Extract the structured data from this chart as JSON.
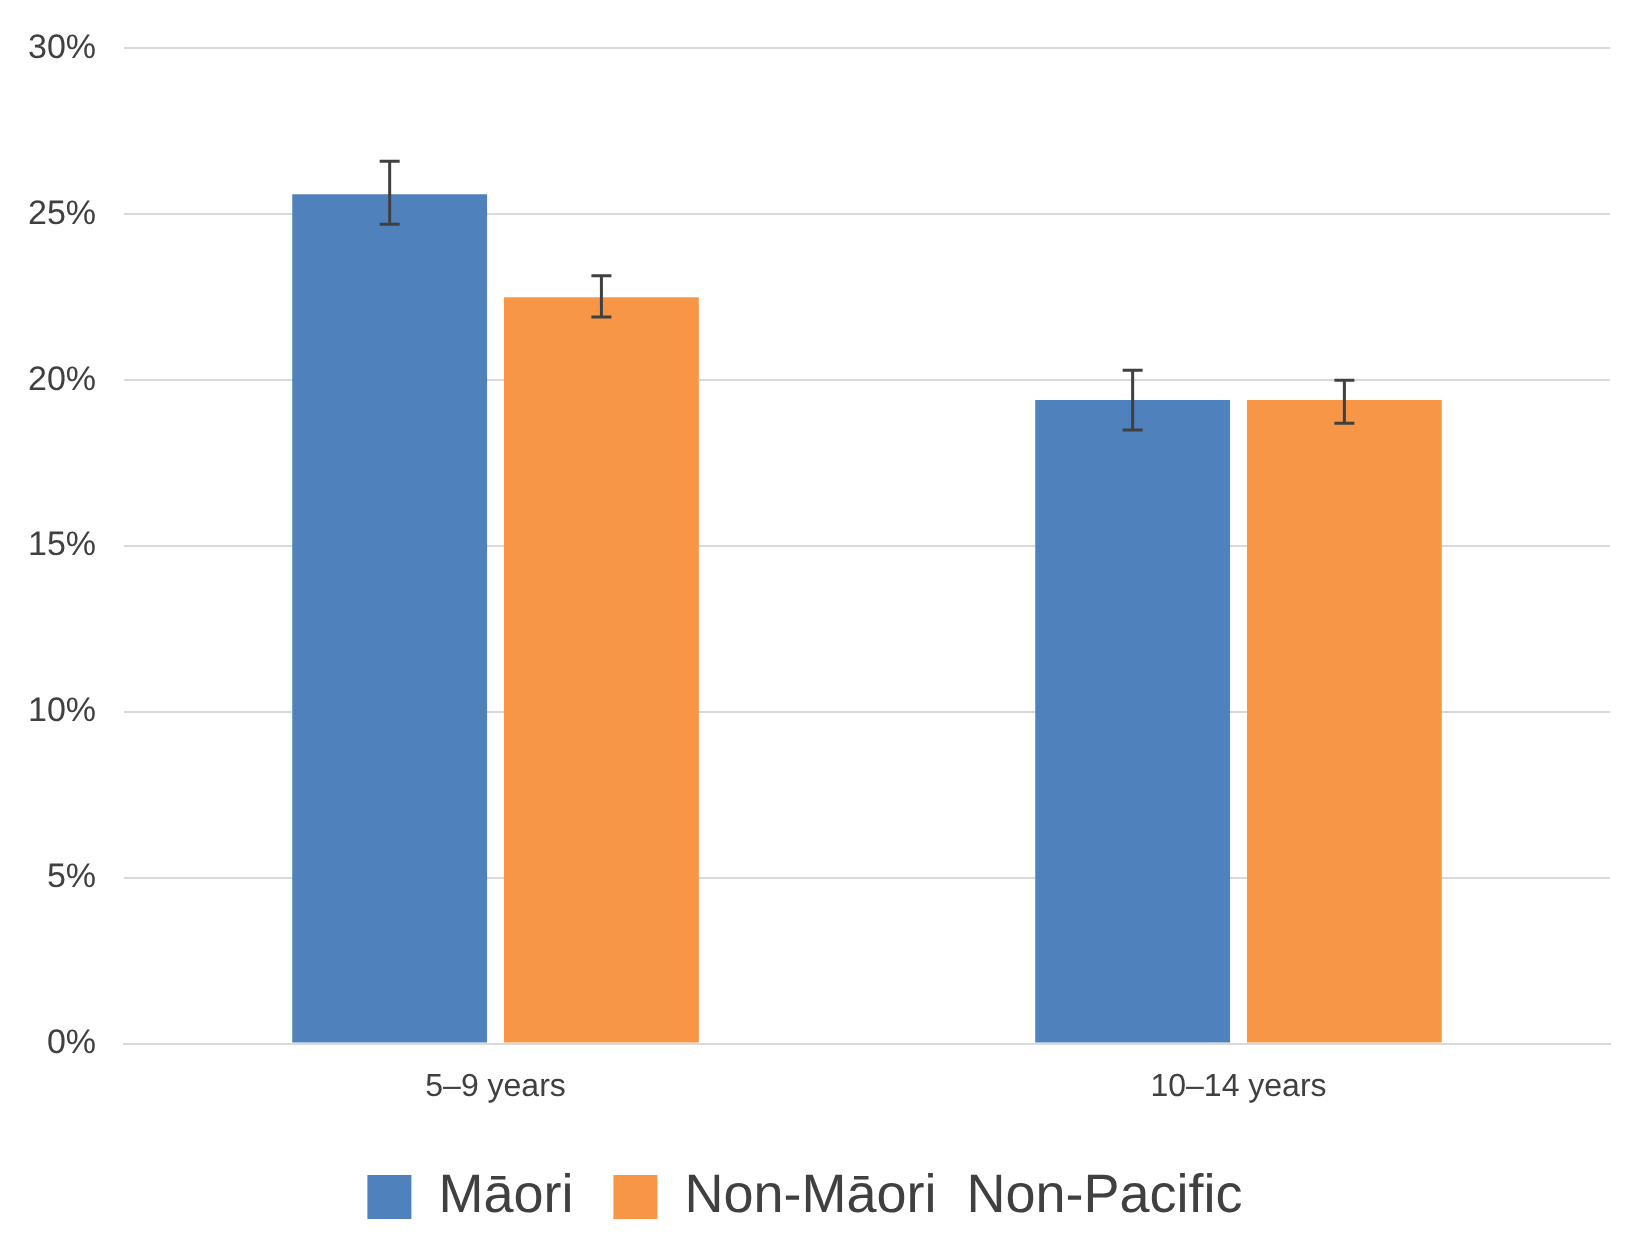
{
  "chart_data": {
    "type": "bar",
    "categories": [
      "5–9 years",
      "10–14 years"
    ],
    "series": [
      {
        "name": "Māori",
        "color": "#4f81bd",
        "values": [
          25.6,
          19.4
        ],
        "errors": [
          [
            24.7,
            26.6
          ],
          [
            18.5,
            20.3
          ]
        ]
      },
      {
        "name": "Non-Māori  Non-Pacific",
        "color": "#f79646",
        "values": [
          22.5,
          19.4
        ],
        "errors": [
          [
            21.9,
            23.15
          ],
          [
            18.7,
            20.0
          ]
        ]
      }
    ],
    "ylim": [
      0,
      30
    ],
    "yticks": [
      {
        "value": 0,
        "label": "0%"
      },
      {
        "value": 5,
        "label": "5%"
      },
      {
        "value": 10,
        "label": "10%"
      },
      {
        "value": 15,
        "label": "15%"
      },
      {
        "value": 20,
        "label": "20%"
      },
      {
        "value": 25,
        "label": "25%"
      },
      {
        "value": 30,
        "label": "30%"
      }
    ],
    "grid": "y",
    "legend": "bottom"
  }
}
